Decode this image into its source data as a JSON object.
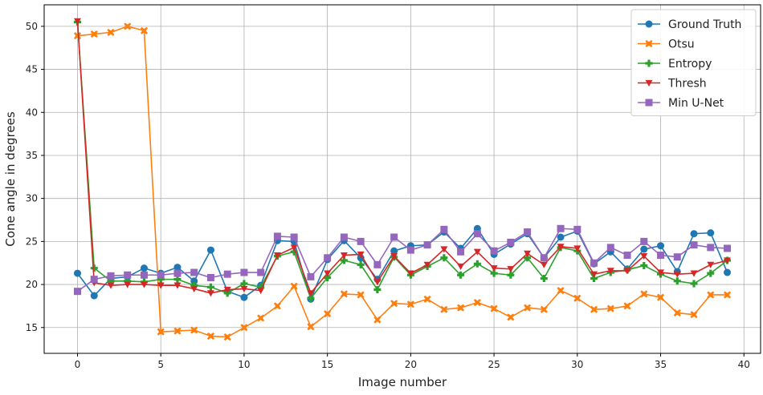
{
  "chart_data": {
    "type": "line",
    "title": "",
    "xlabel": "Image number",
    "ylabel": "Cone angle in degrees",
    "xlim": [
      -2,
      41
    ],
    "ylim": [
      12,
      52.5
    ],
    "xticks": [
      0,
      5,
      10,
      15,
      20,
      25,
      30,
      35,
      40
    ],
    "yticks": [
      15,
      20,
      25,
      30,
      35,
      40,
      45,
      50
    ],
    "grid": true,
    "legend_position": "top-right",
    "x": [
      0,
      1,
      2,
      3,
      4,
      5,
      6,
      7,
      8,
      9,
      10,
      11,
      12,
      13,
      14,
      15,
      16,
      17,
      18,
      19,
      20,
      21,
      22,
      23,
      24,
      25,
      26,
      27,
      28,
      29,
      30,
      31,
      32,
      33,
      34,
      35,
      36,
      37,
      38,
      39
    ],
    "series": [
      {
        "name": "Ground Truth",
        "color": "#1f77b4",
        "marker": "circle",
        "values": [
          21.3,
          18.7,
          20.7,
          20.9,
          21.9,
          21.3,
          22.0,
          20.4,
          24.0,
          19.2,
          18.5,
          19.9,
          25.1,
          25.0,
          18.3,
          22.9,
          25.1,
          23.1,
          20.6,
          23.9,
          24.5,
          24.6,
          26.1,
          24.2,
          26.5,
          23.5,
          24.7,
          25.9,
          23.1,
          25.5,
          26.2,
          22.4,
          23.8,
          21.8,
          24.1,
          24.5,
          21.5,
          25.9,
          26.0,
          21.4
        ]
      },
      {
        "name": "Otsu",
        "color": "#ff7f0e",
        "marker": "x",
        "values": [
          48.9,
          49.1,
          49.3,
          50.0,
          49.5,
          14.5,
          14.6,
          14.7,
          14.0,
          13.9,
          15.0,
          16.1,
          17.5,
          19.8,
          15.1,
          16.6,
          18.9,
          18.8,
          15.9,
          17.8,
          17.7,
          18.3,
          17.1,
          17.3,
          17.9,
          17.2,
          16.2,
          17.3,
          17.1,
          19.3,
          18.4,
          17.1,
          17.2,
          17.5,
          18.9,
          18.5,
          16.7,
          16.5,
          18.8,
          18.8
        ]
      },
      {
        "name": "Entropy",
        "color": "#2ca02c",
        "marker": "plus",
        "values": [
          50.5,
          21.9,
          20.4,
          20.4,
          20.3,
          20.6,
          20.6,
          19.9,
          19.7,
          19.0,
          20.1,
          19.7,
          23.3,
          23.8,
          18.4,
          20.8,
          22.8,
          22.3,
          19.4,
          23.2,
          21.1,
          22.1,
          23.1,
          21.1,
          22.4,
          21.3,
          21.1,
          23.1,
          20.7,
          24.3,
          23.9,
          20.7,
          21.4,
          21.7,
          22.2,
          21.2,
          20.4,
          20.1,
          21.3,
          22.8
        ]
      },
      {
        "name": "Thresh",
        "color": "#d62728",
        "marker": "triangle-down",
        "values": [
          50.6,
          20.2,
          19.9,
          20.0,
          20.0,
          19.9,
          19.9,
          19.5,
          19.0,
          19.4,
          19.5,
          19.3,
          23.4,
          24.3,
          19.0,
          21.3,
          23.4,
          23.5,
          20.3,
          23.3,
          21.3,
          22.3,
          24.1,
          22.1,
          23.8,
          21.9,
          21.8,
          23.6,
          22.3,
          24.4,
          24.2,
          21.2,
          21.6,
          21.6,
          23.3,
          21.4,
          21.2,
          21.3,
          22.3,
          22.8
        ]
      },
      {
        "name": "Min U-Net",
        "color": "#9467bd",
        "marker": "square",
        "values": [
          19.2,
          20.6,
          21.0,
          21.1,
          21.1,
          21.1,
          21.3,
          21.4,
          20.8,
          21.2,
          21.4,
          21.4,
          25.6,
          25.5,
          20.9,
          23.1,
          25.5,
          25.0,
          22.3,
          25.5,
          24.0,
          24.6,
          26.4,
          23.8,
          25.9,
          23.9,
          24.9,
          26.1,
          23.1,
          26.5,
          26.4,
          22.5,
          24.3,
          23.4,
          25.0,
          23.4,
          23.2,
          24.6,
          24.3,
          24.2
        ]
      }
    ]
  }
}
